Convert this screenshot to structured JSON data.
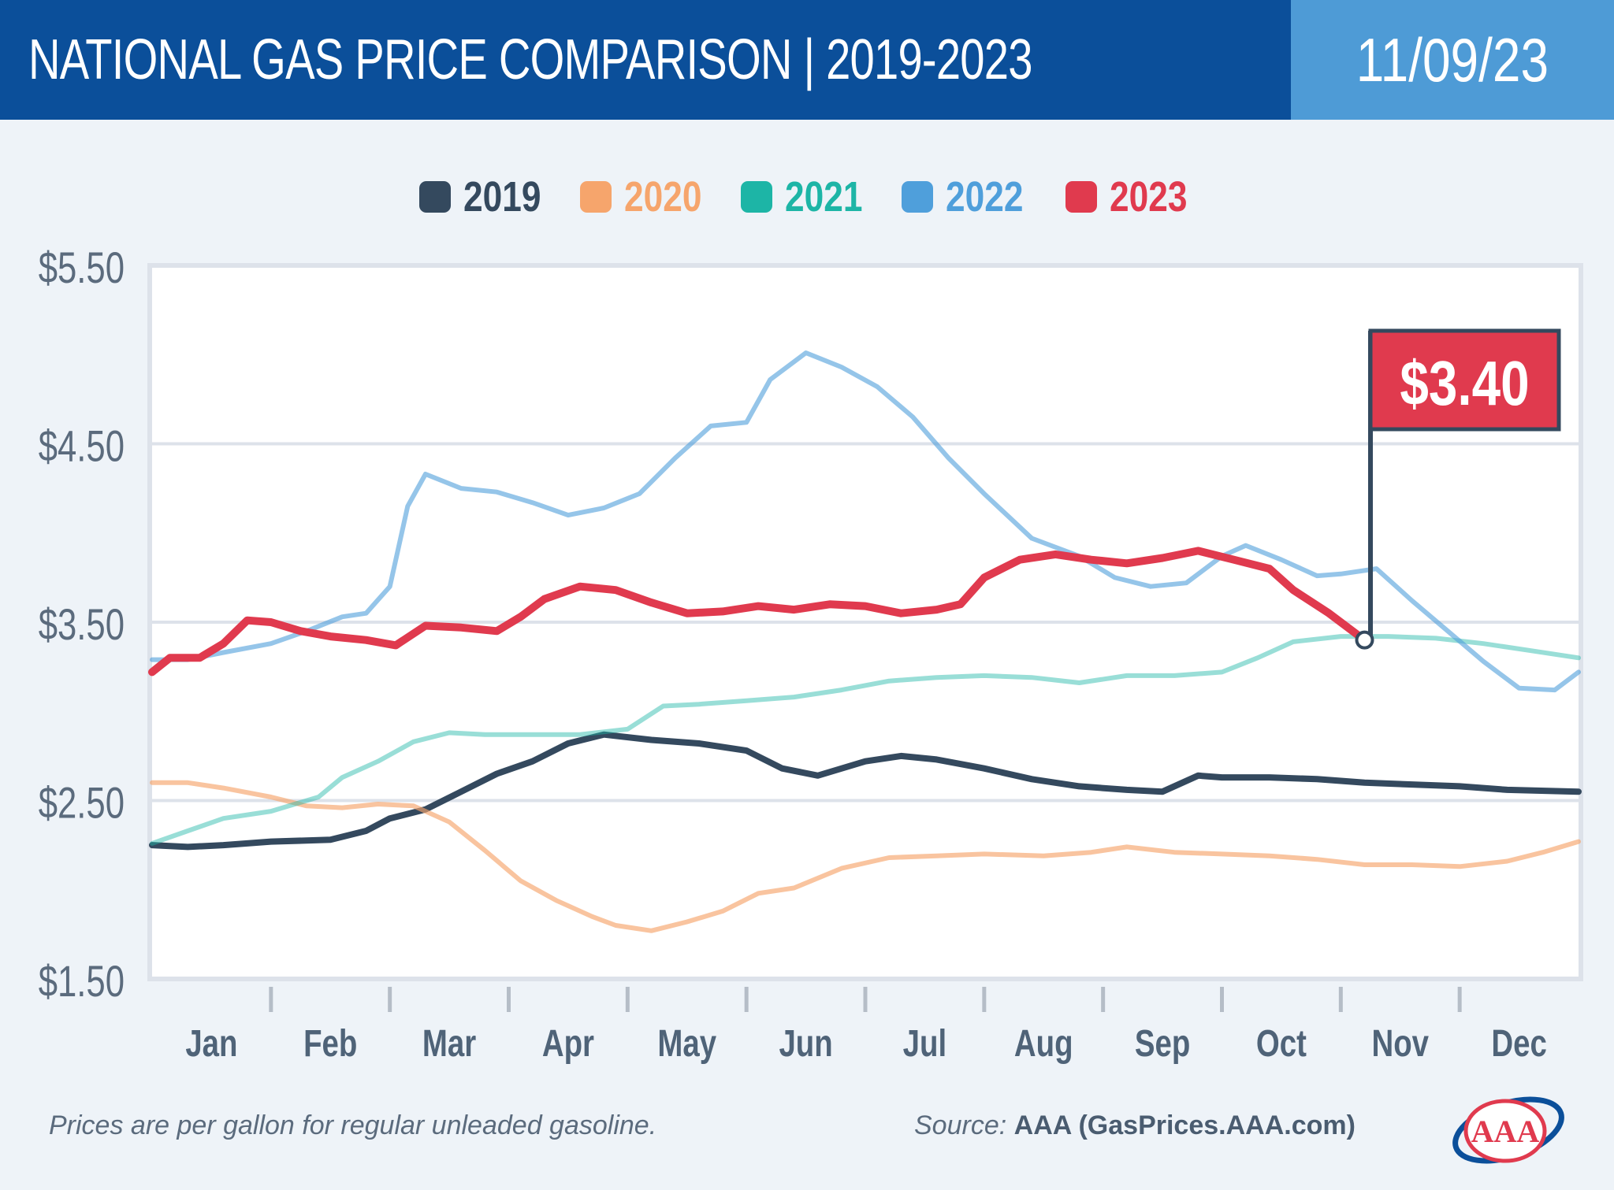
{
  "header": {
    "title": "NATIONAL GAS PRICE COMPARISON | 2019-2023",
    "date": "11/09/23"
  },
  "footer": {
    "note": "Prices are per gallon for regular unleaded gasoline.",
    "source_label": "Source:",
    "source_name": "AAA (GasPrices.AAA.com)",
    "logo_text": "AAA"
  },
  "colors": {
    "2019": "#34495e",
    "2020": "#f6a56c",
    "2021": "#1db5a6",
    "2022": "#4f9fdb",
    "2023": "#e03a4e"
  },
  "chart_data": {
    "type": "line",
    "title": "",
    "xlabel": "",
    "ylabel": "",
    "ylim": [
      1.5,
      5.5
    ],
    "yticks": [
      "$5.50",
      "$4.50",
      "$3.50",
      "$2.50",
      "$1.50"
    ],
    "ytick_values": [
      5.5,
      4.5,
      3.5,
      2.5,
      1.5
    ],
    "categories": [
      "Jan",
      "Feb",
      "Mar",
      "Apr",
      "May",
      "Jun",
      "Jul",
      "Aug",
      "Sep",
      "Oct",
      "Nov",
      "Dec"
    ],
    "legend_position": "top-center",
    "grid": true,
    "annotation": {
      "label": "$3.40",
      "x": 10.2,
      "y": 3.4,
      "series": "2023"
    },
    "series": [
      {
        "name": "2019",
        "x": [
          0,
          0.3,
          0.6,
          1.0,
          1.5,
          1.8,
          2.0,
          2.3,
          2.6,
          2.9,
          3.2,
          3.5,
          3.8,
          4.2,
          4.6,
          5.0,
          5.3,
          5.6,
          6.0,
          6.3,
          6.6,
          7.0,
          7.4,
          7.8,
          8.2,
          8.5,
          8.8,
          9.0,
          9.4,
          9.8,
          10.2,
          10.6,
          11.0,
          11.4,
          12.0
        ],
        "y": [
          2.25,
          2.24,
          2.25,
          2.27,
          2.28,
          2.33,
          2.4,
          2.45,
          2.55,
          2.65,
          2.72,
          2.82,
          2.87,
          2.84,
          2.82,
          2.78,
          2.68,
          2.64,
          2.72,
          2.75,
          2.73,
          2.68,
          2.62,
          2.58,
          2.56,
          2.55,
          2.64,
          2.63,
          2.63,
          2.62,
          2.6,
          2.59,
          2.58,
          2.56,
          2.55
        ]
      },
      {
        "name": "2020",
        "x": [
          0,
          0.3,
          0.6,
          1.0,
          1.3,
          1.6,
          1.9,
          2.2,
          2.5,
          2.8,
          3.1,
          3.4,
          3.7,
          3.9,
          4.2,
          4.5,
          4.8,
          5.1,
          5.4,
          5.8,
          6.2,
          6.6,
          7.0,
          7.5,
          7.9,
          8.2,
          8.6,
          9.0,
          9.4,
          9.8,
          10.2,
          10.6,
          11.0,
          11.4,
          11.7,
          12.0
        ],
        "y": [
          2.6,
          2.6,
          2.57,
          2.52,
          2.47,
          2.46,
          2.48,
          2.47,
          2.38,
          2.22,
          2.05,
          1.94,
          1.85,
          1.8,
          1.77,
          1.82,
          1.88,
          1.98,
          2.01,
          2.12,
          2.18,
          2.19,
          2.2,
          2.19,
          2.21,
          2.24,
          2.21,
          2.2,
          2.19,
          2.17,
          2.14,
          2.14,
          2.13,
          2.16,
          2.21,
          2.27
        ]
      },
      {
        "name": "2021",
        "x": [
          0,
          0.3,
          0.6,
          1.0,
          1.4,
          1.6,
          1.9,
          2.2,
          2.5,
          2.8,
          3.2,
          3.6,
          4.0,
          4.3,
          4.6,
          5.0,
          5.4,
          5.8,
          6.2,
          6.6,
          7.0,
          7.4,
          7.8,
          8.2,
          8.6,
          9.0,
          9.3,
          9.6,
          10.0,
          10.4,
          10.8,
          11.2,
          11.6,
          12.0
        ],
        "y": [
          2.26,
          2.33,
          2.4,
          2.44,
          2.52,
          2.63,
          2.72,
          2.83,
          2.88,
          2.87,
          2.87,
          2.87,
          2.9,
          3.03,
          3.04,
          3.06,
          3.08,
          3.12,
          3.17,
          3.19,
          3.2,
          3.19,
          3.16,
          3.2,
          3.2,
          3.22,
          3.3,
          3.39,
          3.42,
          3.42,
          3.41,
          3.38,
          3.34,
          3.3
        ]
      },
      {
        "name": "2022",
        "x": [
          0,
          0.3,
          0.6,
          1.0,
          1.3,
          1.6,
          1.8,
          2.0,
          2.15,
          2.3,
          2.6,
          2.9,
          3.2,
          3.5,
          3.8,
          4.1,
          4.4,
          4.7,
          5.0,
          5.2,
          5.5,
          5.8,
          6.1,
          6.4,
          6.7,
          7.0,
          7.4,
          7.8,
          8.1,
          8.4,
          8.7,
          9.0,
          9.2,
          9.5,
          9.8,
          10.0,
          10.3,
          10.6,
          10.9,
          11.2,
          11.5,
          11.8,
          12.0
        ],
        "y": [
          3.29,
          3.29,
          3.33,
          3.38,
          3.45,
          3.53,
          3.55,
          3.7,
          4.15,
          4.33,
          4.25,
          4.23,
          4.17,
          4.1,
          4.14,
          4.22,
          4.42,
          4.6,
          4.62,
          4.86,
          5.01,
          4.93,
          4.82,
          4.65,
          4.42,
          4.22,
          3.97,
          3.87,
          3.75,
          3.7,
          3.72,
          3.87,
          3.93,
          3.85,
          3.76,
          3.77,
          3.8,
          3.62,
          3.45,
          3.28,
          3.13,
          3.12,
          3.22
        ]
      },
      {
        "name": "2023",
        "x": [
          0,
          0.15,
          0.4,
          0.6,
          0.8,
          1.0,
          1.25,
          1.5,
          1.8,
          2.05,
          2.3,
          2.6,
          2.9,
          3.1,
          3.3,
          3.6,
          3.9,
          4.2,
          4.5,
          4.8,
          5.1,
          5.4,
          5.7,
          6.0,
          6.3,
          6.6,
          6.8,
          7.0,
          7.3,
          7.6,
          7.9,
          8.2,
          8.5,
          8.8,
          9.1,
          9.4,
          9.6,
          9.9,
          10.2
        ],
        "y": [
          3.22,
          3.3,
          3.3,
          3.38,
          3.51,
          3.5,
          3.45,
          3.42,
          3.4,
          3.37,
          3.48,
          3.47,
          3.45,
          3.53,
          3.63,
          3.7,
          3.68,
          3.61,
          3.55,
          3.56,
          3.59,
          3.57,
          3.6,
          3.59,
          3.55,
          3.57,
          3.6,
          3.75,
          3.85,
          3.88,
          3.85,
          3.83,
          3.86,
          3.9,
          3.85,
          3.8,
          3.68,
          3.55,
          3.4
        ]
      }
    ]
  }
}
